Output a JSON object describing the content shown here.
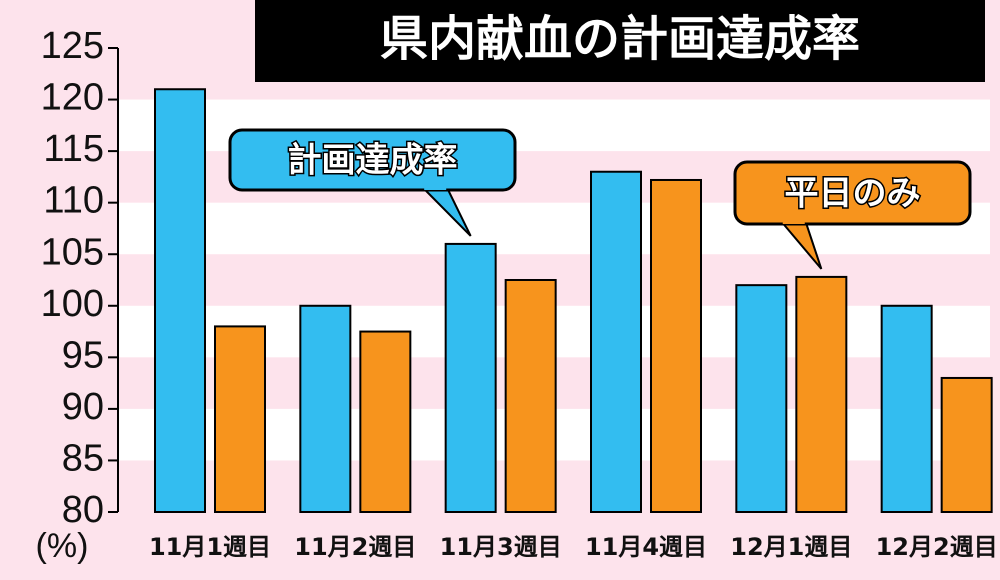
{
  "chart_data": {
    "type": "bar",
    "title": "県内献血の計画達成率",
    "y_label": "(%)",
    "categories": [
      "11月1週目",
      "11月2週目",
      "11月3週目",
      "11月4週目",
      "12月1週目",
      "12月2週目"
    ],
    "series": [
      {
        "name": "計画達成率",
        "color": "#33bdf0",
        "values": [
          121,
          100,
          106,
          113,
          102,
          100
        ]
      },
      {
        "name": "平日のみ",
        "color": "#f7941d",
        "values": [
          98,
          97.5,
          102.5,
          112.2,
          102.8,
          93
        ]
      }
    ],
    "ylim": [
      80,
      125
    ],
    "yticks": [
      80,
      85,
      90,
      95,
      100,
      105,
      110,
      115,
      120,
      125
    ],
    "grid": true
  }
}
